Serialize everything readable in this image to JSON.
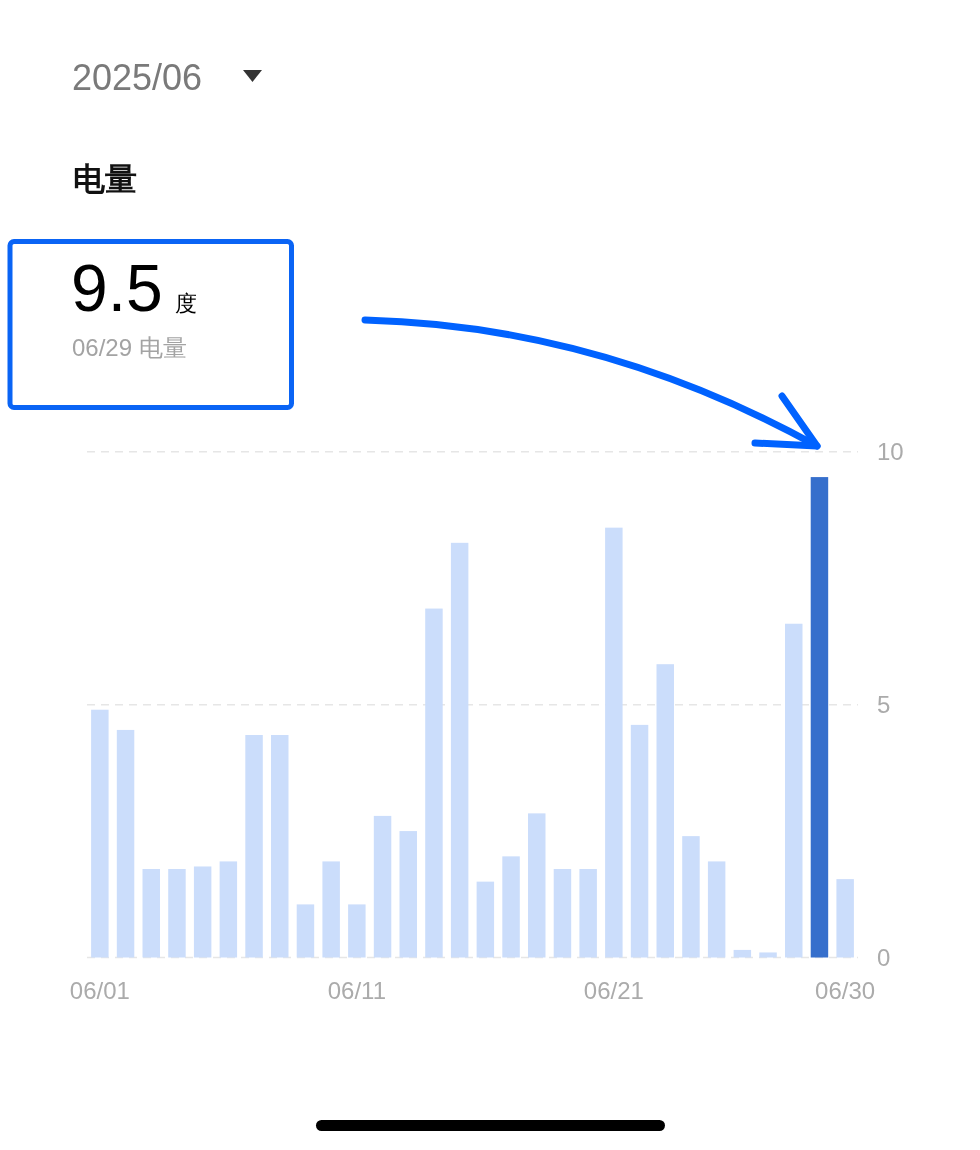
{
  "chart_data": {
    "type": "bar",
    "title": "电量",
    "categories": [
      "06/01",
      null,
      null,
      null,
      null,
      null,
      null,
      null,
      null,
      null,
      "06/11",
      null,
      null,
      null,
      null,
      null,
      null,
      null,
      null,
      null,
      "06/21",
      null,
      null,
      null,
      null,
      null,
      null,
      null,
      null,
      "06/30"
    ],
    "values": [
      4.9,
      4.5,
      1.75,
      1.75,
      1.8,
      1.9,
      4.4,
      4.4,
      1.05,
      1.9,
      1.05,
      2.8,
      2.5,
      6.9,
      8.2,
      1.5,
      2.0,
      2.85,
      1.75,
      1.75,
      8.5,
      4.6,
      5.8,
      2.4,
      1.9,
      0.15,
      0.1,
      6.6,
      9.5,
      1.55
    ],
    "colors": [
      "#cbddfb",
      "#cbddfb",
      "#cbddfb",
      "#cbddfb",
      "#cbddfb",
      "#cbddfb",
      "#cbddfb",
      "#cbddfb",
      "#cbddfb",
      "#cbddfb",
      "#cbddfb",
      "#cbddfb",
      "#cbddfb",
      "#cbddfb",
      "#cbddfb",
      "#cbddfb",
      "#cbddfb",
      "#cbddfb",
      "#cbddfb",
      "#cbddfb",
      "#cbddfb",
      "#cbddfb",
      "#cbddfb",
      "#cbddfb",
      "#cbddfb",
      "#cbddfb",
      "#cbddfb",
      "#cbddfb",
      "#366fcc",
      "#cbddfb"
    ],
    "ylim": [
      0,
      10
    ],
    "yticks": [
      0,
      5,
      10
    ],
    "grid": "y",
    "annotations": [
      "2025/06",
      "9.5 度",
      "06/29 电量"
    ]
  }
}
